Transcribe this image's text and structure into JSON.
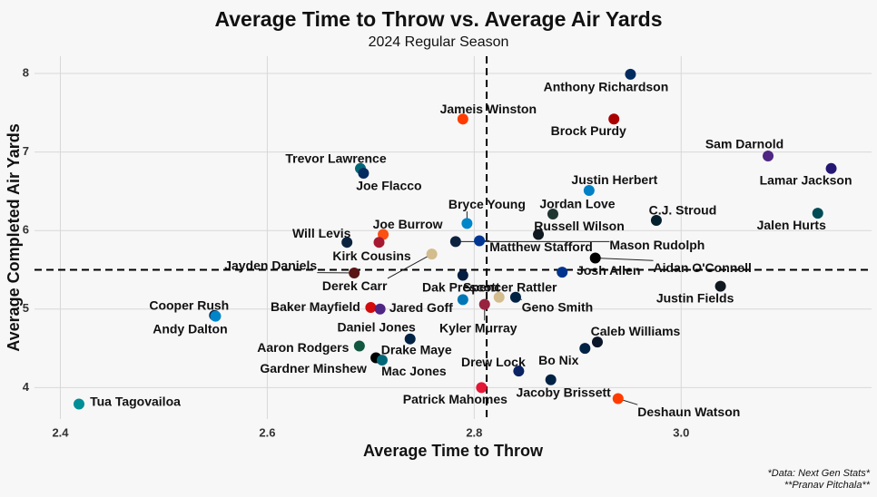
{
  "chart_data": {
    "type": "scatter",
    "title": "Average Time to Throw vs. Average Air Yards",
    "subtitle": "2024 Regular Season",
    "x_label": "Average Time to Throw",
    "y_label": "Average Completed Air Yards",
    "captions": [
      "*Data: Next Gen Stats*",
      "**Pranav Pitchala**"
    ],
    "xlim": [
      2.375,
      3.184
    ],
    "ylim": [
      3.6,
      8.22
    ],
    "xticks": [
      2.4,
      2.6,
      2.8,
      {
        "value": 3,
        "label": "3.0"
      }
    ],
    "yticks": [
      4,
      5,
      6,
      7,
      8
    ],
    "grid": true,
    "reference_lines": {
      "x": 2.812,
      "y": 5.5
    },
    "points": [
      {
        "name": "Anthony Richardson",
        "x": 2.951,
        "y": 7.99,
        "color": "#002c5f"
      },
      {
        "name": "Jameis Winston",
        "x": 2.789,
        "y": 7.42,
        "color": "#ff3c00"
      },
      {
        "name": "Brock Purdy",
        "x": 2.935,
        "y": 7.42,
        "color": "#aa0000"
      },
      {
        "name": "Sam Darnold",
        "x": 3.084,
        "y": 6.95,
        "color": "#4f2683"
      },
      {
        "name": "Lamar Jackson",
        "x": 3.145,
        "y": 6.79,
        "color": "#241773"
      },
      {
        "name": "Trevor Lawrence",
        "x": 2.69,
        "y": 6.79,
        "color": "#006778"
      },
      {
        "name": "Joe Flacco",
        "x": 2.693,
        "y": 6.73,
        "color": "#002c5f"
      },
      {
        "name": "Justin Herbert",
        "x": 2.911,
        "y": 6.51,
        "color": "#0080c6"
      },
      {
        "name": "Jordan Love",
        "x": 2.876,
        "y": 6.21,
        "color": "#203731"
      },
      {
        "name": "C.J. Stroud",
        "x": 2.976,
        "y": 6.13,
        "color": "#03202f"
      },
      {
        "name": "Jalen Hurts",
        "x": 3.132,
        "y": 6.22,
        "color": "#004c54"
      },
      {
        "name": "Bryce Young",
        "x": 2.793,
        "y": 6.09,
        "color": "#0085ca"
      },
      {
        "name": "Joe Burrow",
        "x": 2.712,
        "y": 5.95,
        "color": "#fb4f14"
      },
      {
        "name": "Russell Wilson",
        "x": 2.862,
        "y": 5.95,
        "color": "#101820"
      },
      {
        "name": "Will Levis",
        "x": 2.677,
        "y": 5.85,
        "color": "#0c2340"
      },
      {
        "name": "Kirk Cousins",
        "x": 2.708,
        "y": 5.85,
        "color": "#a71930"
      },
      {
        "name": "Matthew Stafford",
        "x": 2.805,
        "y": 5.87,
        "color": "#003594"
      },
      {
        "name": "Mason Rudolph",
        "x": 2.782,
        "y": 5.86,
        "color": "#0c2340"
      },
      {
        "name": "Dak Prescott",
        "x": 2.789,
        "y": 5.43,
        "color": "#041e42"
      },
      {
        "name": "Jayden Daniels",
        "x": 2.684,
        "y": 5.46,
        "color": "#5a1414"
      },
      {
        "name": "Aidan O'Connell",
        "x": 2.917,
        "y": 5.65,
        "color": "#000000"
      },
      {
        "name": "Josh Allen",
        "x": 2.885,
        "y": 5.47,
        "color": "#00338d"
      },
      {
        "name": "Derek Carr",
        "x": 2.759,
        "y": 5.7,
        "color": "#d3bc8d"
      },
      {
        "name": "Justin Fields",
        "x": 3.038,
        "y": 5.29,
        "color": "#101820"
      },
      {
        "name": "Spencer Rattler",
        "x": 2.824,
        "y": 5.15,
        "color": "#d3bc8d"
      },
      {
        "name": "Geno Smith",
        "x": 2.84,
        "y": 5.15,
        "color": "#002244"
      },
      {
        "name": "Cooper Rush",
        "x": 2.549,
        "y": 4.92,
        "color": "#041e42"
      },
      {
        "name": "Andy Dalton",
        "x": 2.55,
        "y": 4.91,
        "color": "#0085ca"
      },
      {
        "name": "Baker Mayfield",
        "x": 2.7,
        "y": 5.02,
        "color": "#d50a0a"
      },
      {
        "name": "Jared Goff",
        "x": 2.789,
        "y": 5.12,
        "color": "#0076b6"
      },
      {
        "name": "Kyler Murray",
        "x": 2.81,
        "y": 5.06,
        "color": "#97233f"
      },
      {
        "name": "Daniel Jones",
        "x": 2.709,
        "y": 5.0,
        "color": "#4f2683"
      },
      {
        "name": "Caleb Williams",
        "x": 2.919,
        "y": 4.58,
        "color": "#0b162a"
      },
      {
        "name": "Aaron Rodgers",
        "x": 2.689,
        "y": 4.53,
        "color": "#125740"
      },
      {
        "name": "Drake Maye",
        "x": 2.738,
        "y": 4.62,
        "color": "#002244"
      },
      {
        "name": "Bo Nix",
        "x": 2.907,
        "y": 4.5,
        "color": "#002244"
      },
      {
        "name": "Drew Lock",
        "x": 2.843,
        "y": 4.21,
        "color": "#0b2265"
      },
      {
        "name": "Gardner Minshew",
        "x": 2.705,
        "y": 4.38,
        "color": "#000000"
      },
      {
        "name": "Mac Jones",
        "x": 2.711,
        "y": 4.35,
        "color": "#006778"
      },
      {
        "name": "Jacoby Brissett",
        "x": 2.874,
        "y": 4.1,
        "color": "#002244"
      },
      {
        "name": "Tua Tagovailoa",
        "x": 2.418,
        "y": 3.79,
        "color": "#008e97"
      },
      {
        "name": "Patrick Mahomes",
        "x": 2.807,
        "y": 4.0,
        "color": "#e31837"
      },
      {
        "name": "Deshaun Watson",
        "x": 2.939,
        "y": 3.86,
        "color": "#ff3c00"
      }
    ]
  }
}
